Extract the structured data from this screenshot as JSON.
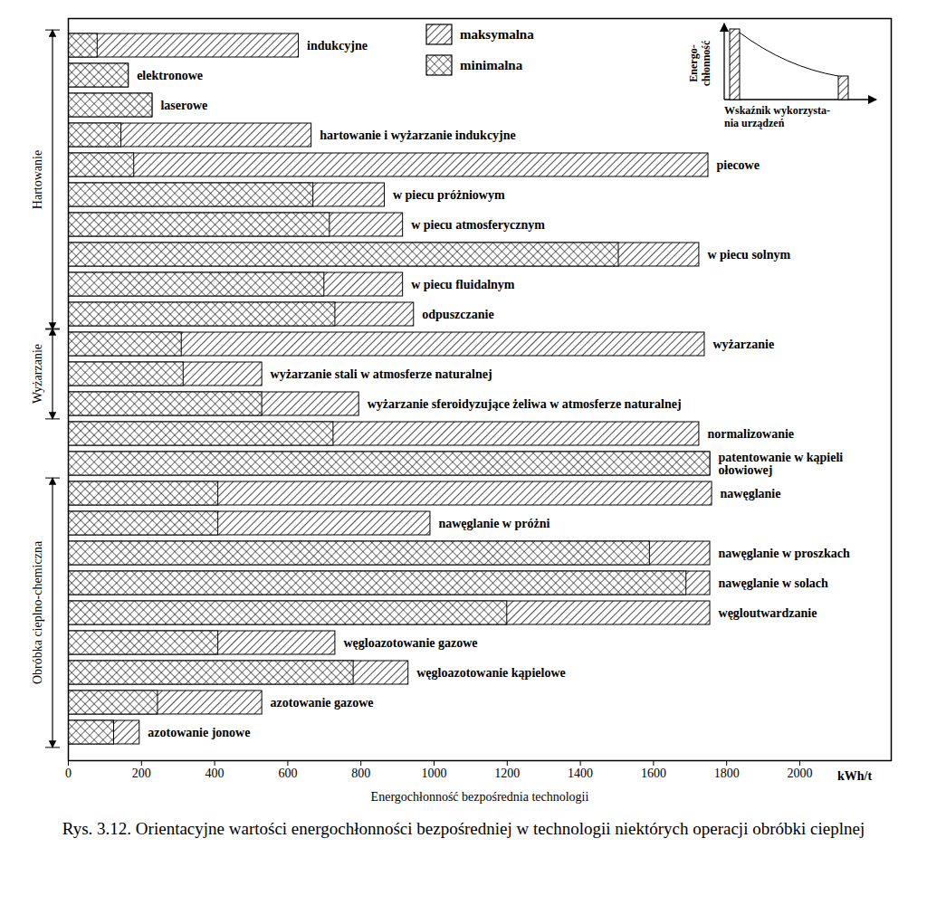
{
  "chart_data": {
    "type": "bar",
    "orientation": "horizontal",
    "title": "Rys. 3.12. Orientacyjne wartości energochłonności bezpośredniej w technologii niektórych operacji obróbki cieplnej",
    "x_label": "Energochłonność bezpośrednia technologii",
    "x_unit": "kWh/t",
    "categories": [
      "indukcyjne",
      "elektronowe",
      "laserowe",
      "hartowanie i wyżarzanie indukcyjne",
      "piecowe",
      "w piecu próżniowym",
      "w piecu atmosferycznym",
      "w piecu solnym",
      "w piecu fluidalnym",
      "odpuszczanie",
      "wyżarzanie",
      "wyżarzanie stali w atmosferze naturalnej",
      "wyżarzanie sferoidyzujące żeliwa w atmosferze naturalnej",
      "normalizowanie",
      "patentowanie w kąpieli ołowiowej",
      "nawęglanie",
      "nawęglanie w próżni",
      "nawęglanie w proszkach",
      "nawęglanie w solach",
      "węgloutwardzanie",
      "węgloazotowanie gazowe",
      "węgloazotowanie kąpielowe",
      "azotowanie gazowe",
      "azotowanie jonowe"
    ],
    "series": [
      {
        "name": "maksymalna",
        "color": "#000000",
        "values": [
          630,
          165,
          230,
          665,
          1750,
          865,
          915,
          1725,
          915,
          945,
          1740,
          530,
          795,
          1725,
          1755,
          1760,
          990,
          1755,
          1755,
          1755,
          730,
          930,
          530,
          195
        ]
      },
      {
        "name": "minimalna",
        "color": "#000000",
        "values": [
          80,
          165,
          230,
          145,
          180,
          670,
          715,
          1505,
          700,
          730,
          310,
          315,
          530,
          725,
          1755,
          410,
          410,
          1590,
          1690,
          1200,
          410,
          780,
          245,
          125
        ]
      }
    ],
    "groups": [
      {
        "name": "Hartowanie",
        "first": "indukcyjne",
        "last": "odpuszczanie"
      },
      {
        "name": "Wyżarzanie",
        "first": "wyżarzanie",
        "last": "wyżarzanie sferoidyzujące żeliwa w atmosferze naturalnej"
      },
      {
        "name": "Obróbka cieplno-chemiczna",
        "first": "nawęglanie",
        "last": "azotowanie jonowe"
      }
    ],
    "inset": {
      "y_label_lines": [
        "Energo-",
        "chłonność"
      ],
      "x_label_lines": [
        "Wskaźnik wykorzysta-",
        "nia urządzeń"
      ]
    },
    "xlim": [
      0,
      2250
    ],
    "xticks": [
      0,
      200,
      400,
      600,
      800,
      1000,
      1200,
      1400,
      1600,
      1800,
      2000
    ],
    "grid": false,
    "legend": "top"
  }
}
